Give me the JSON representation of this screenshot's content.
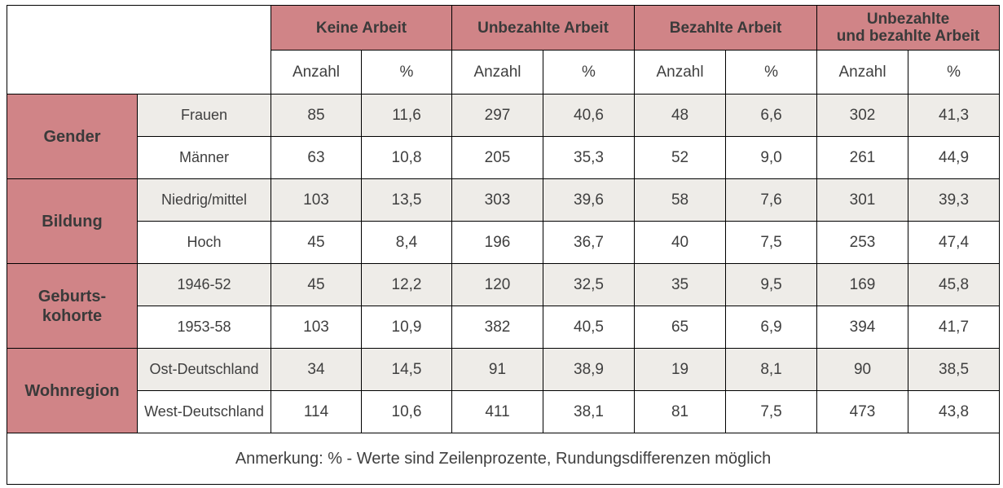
{
  "groups": {
    "g1": "Keine Arbeit",
    "g2": "Unbezahlte Arbeit",
    "g3": "Bezahlte Arbeit",
    "g4_line1": "Unbezahlte",
    "g4_line2": "und bezahlte Arbeit"
  },
  "subheaders": {
    "count": "Anzahl",
    "pct": "%"
  },
  "categories": {
    "gender": "Gender",
    "bildung": "Bildung",
    "kohorte_line1": "Geburts-",
    "kohorte_line2": "kohorte",
    "wohnregion": "Wohnregion"
  },
  "rows": [
    {
      "label": "Frauen",
      "values": [
        "85",
        "11,6",
        "297",
        "40,6",
        "48",
        "6,6",
        "302",
        "41,3"
      ]
    },
    {
      "label": "Männer",
      "values": [
        "63",
        "10,8",
        "205",
        "35,3",
        "52",
        "9,0",
        "261",
        "44,9"
      ]
    },
    {
      "label": "Niedrig/mittel",
      "values": [
        "103",
        "13,5",
        "303",
        "39,6",
        "58",
        "7,6",
        "301",
        "39,3"
      ]
    },
    {
      "label": "Hoch",
      "values": [
        "45",
        "8,4",
        "196",
        "36,7",
        "40",
        "7,5",
        "253",
        "47,4"
      ]
    },
    {
      "label": "1946-52",
      "values": [
        "45",
        "12,2",
        "120",
        "32,5",
        "35",
        "9,5",
        "169",
        "45,8"
      ]
    },
    {
      "label": "1953-58",
      "values": [
        "103",
        "10,9",
        "382",
        "40,5",
        "65",
        "6,9",
        "394",
        "41,7"
      ]
    },
    {
      "label": "Ost-Deutschland",
      "values": [
        "34",
        "14,5",
        "91",
        "38,9",
        "19",
        "8,1",
        "90",
        "38,5"
      ]
    },
    {
      "label": "West-Deutschland",
      "values": [
        "114",
        "10,6",
        "411",
        "38,1",
        "81",
        "7,5",
        "473",
        "43,8"
      ]
    }
  ],
  "note": "Anmerkung:  % - Werte sind Zeilenprozente, Rundungsdifferenzen möglich",
  "colors": {
    "header_fill": "#d08487",
    "stripe_fill": "#eeece8",
    "border": "#000000"
  }
}
